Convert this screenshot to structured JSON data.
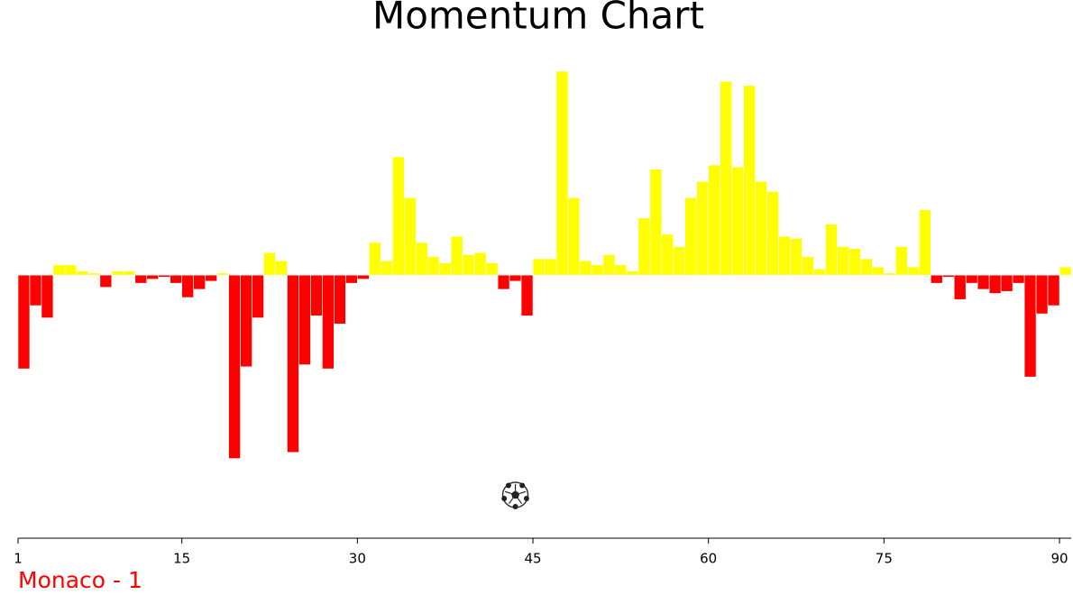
{
  "chart_data": {
    "type": "momentum",
    "title": "Momentum Chart",
    "x": [
      1,
      2,
      3,
      4,
      5,
      6,
      7,
      8,
      9,
      10,
      11,
      12,
      13,
      14,
      15,
      16,
      17,
      18,
      19,
      20,
      21,
      22,
      23,
      24,
      25,
      26,
      27,
      28,
      29,
      30,
      31,
      32,
      33,
      34,
      35,
      36,
      37,
      38,
      39,
      40,
      41,
      42,
      43,
      44,
      45,
      46,
      47,
      48,
      49,
      50,
      51,
      52,
      53,
      54,
      55,
      56,
      57,
      58,
      59,
      60,
      61,
      62,
      63,
      64,
      65,
      66,
      67,
      68,
      69,
      70,
      71,
      72,
      73,
      74,
      75,
      76,
      77,
      78,
      79,
      80,
      81,
      82,
      83,
      84,
      85,
      86,
      87,
      88,
      89,
      90
    ],
    "values": [
      -46,
      -15,
      -21,
      5,
      5,
      2,
      1,
      -6,
      2,
      2,
      -4,
      -2,
      -1,
      -4,
      -11,
      -7,
      -3,
      1,
      -90,
      -45,
      -21,
      11,
      7,
      -87,
      -44,
      -20,
      -46,
      -24,
      -4,
      -2,
      16,
      7,
      58,
      38,
      16,
      9,
      6,
      19,
      10,
      11,
      6,
      -7,
      -3,
      -20,
      8,
      8,
      100,
      38,
      7,
      5,
      10,
      5,
      2,
      28,
      52,
      20,
      14,
      38,
      46,
      54,
      95,
      53,
      93,
      46,
      41,
      19,
      18,
      9,
      3,
      25,
      14,
      13,
      8,
      4,
      1,
      14,
      4,
      32,
      -4,
      -1,
      -12,
      -4,
      -7,
      -9,
      -8,
      -4,
      -50,
      -19,
      -15,
      4
    ],
    "positive_color": "#ffff00",
    "negative_color": "#ff0000",
    "xlim": [
      1,
      91
    ],
    "xticks": [
      1,
      15,
      30,
      45,
      60,
      75,
      90
    ],
    "ylim": [
      -126,
      104
    ],
    "goals": [
      43
    ],
    "team_label": "Monaco - 1",
    "team_color": "#ff0000"
  }
}
